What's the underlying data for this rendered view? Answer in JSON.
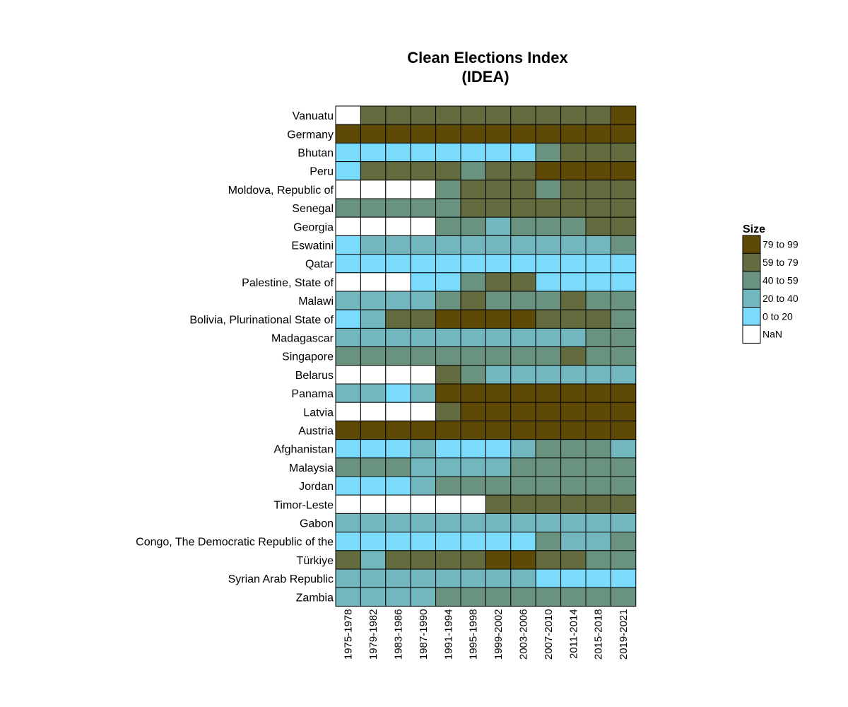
{
  "chart_data": {
    "type": "heatmap",
    "title_lines": [
      "Clean Elections Index",
      "(IDEA)"
    ],
    "columns": [
      "1975-1978",
      "1979-1982",
      "1983-1986",
      "1987-1990",
      "1991-1994",
      "1995-1998",
      "1999-2002",
      "2003-2006",
      "2007-2010",
      "2011-2014",
      "2015-2018",
      "2019-2021"
    ],
    "rows": [
      "Vanuatu",
      "Germany",
      "Bhutan",
      "Peru",
      "Moldova, Republic of",
      "Senegal",
      "Georgia",
      "Eswatini",
      "Qatar",
      "Palestine, State of",
      "Malawi",
      "Bolivia, Plurinational State of",
      "Madagascar",
      "Singapore",
      "Belarus",
      "Panama",
      "Latvia",
      "Austria",
      "Afghanistan",
      "Malaysia",
      "Jordan",
      "Timor-Leste",
      "Gabon",
      "Congo, The Democratic Republic of the",
      "Türkiye",
      "Syrian Arab Republic",
      "Zambia"
    ],
    "bins": [
      {
        "label": "79 to 99",
        "color": "#5e4a05"
      },
      {
        "label": "59 to 79",
        "color": "#636b3f"
      },
      {
        "label": "40 to 59",
        "color": "#6a937f"
      },
      {
        "label": "20 to 40",
        "color": "#72b6be"
      },
      {
        "label": "0 to 20",
        "color": "#7adbfd"
      },
      {
        "label": "NaN",
        "color": "#ffffff"
      }
    ],
    "legend_title": "Size",
    "legend_position": "right",
    "values": [
      [
        null,
        "59 to 79",
        "59 to 79",
        "59 to 79",
        "59 to 79",
        "59 to 79",
        "59 to 79",
        "59 to 79",
        "59 to 79",
        "59 to 79",
        "59 to 79",
        "79 to 99"
      ],
      [
        "79 to 99",
        "79 to 99",
        "79 to 99",
        "79 to 99",
        "79 to 99",
        "79 to 99",
        "79 to 99",
        "79 to 99",
        "79 to 99",
        "79 to 99",
        "79 to 99",
        "79 to 99"
      ],
      [
        "0 to 20",
        "0 to 20",
        "0 to 20",
        "0 to 20",
        "0 to 20",
        "0 to 20",
        "0 to 20",
        "0 to 20",
        "40 to 59",
        "59 to 79",
        "59 to 79",
        "59 to 79"
      ],
      [
        "0 to 20",
        "59 to 79",
        "59 to 79",
        "59 to 79",
        "59 to 79",
        "40 to 59",
        "59 to 79",
        "59 to 79",
        "79 to 99",
        "79 to 99",
        "79 to 99",
        "79 to 99"
      ],
      [
        null,
        null,
        null,
        null,
        "40 to 59",
        "59 to 79",
        "59 to 79",
        "59 to 79",
        "40 to 59",
        "59 to 79",
        "59 to 79",
        "59 to 79"
      ],
      [
        "40 to 59",
        "40 to 59",
        "40 to 59",
        "40 to 59",
        "40 to 59",
        "59 to 79",
        "59 to 79",
        "59 to 79",
        "59 to 79",
        "59 to 79",
        "59 to 79",
        "59 to 79"
      ],
      [
        null,
        null,
        null,
        null,
        "40 to 59",
        "40 to 59",
        "20 to 40",
        "40 to 59",
        "40 to 59",
        "40 to 59",
        "59 to 79",
        "59 to 79"
      ],
      [
        "0 to 20",
        "20 to 40",
        "20 to 40",
        "20 to 40",
        "20 to 40",
        "20 to 40",
        "20 to 40",
        "20 to 40",
        "20 to 40",
        "20 to 40",
        "20 to 40",
        "40 to 59"
      ],
      [
        "0 to 20",
        "0 to 20",
        "0 to 20",
        "0 to 20",
        "0 to 20",
        "0 to 20",
        "0 to 20",
        "0 to 20",
        "0 to 20",
        "0 to 20",
        "0 to 20",
        "0 to 20"
      ],
      [
        null,
        null,
        null,
        "0 to 20",
        "0 to 20",
        "40 to 59",
        "59 to 79",
        "59 to 79",
        "0 to 20",
        "0 to 20",
        "0 to 20",
        "0 to 20"
      ],
      [
        "20 to 40",
        "20 to 40",
        "20 to 40",
        "20 to 40",
        "40 to 59",
        "59 to 79",
        "40 to 59",
        "40 to 59",
        "40 to 59",
        "59 to 79",
        "40 to 59",
        "40 to 59"
      ],
      [
        "0 to 20",
        "20 to 40",
        "59 to 79",
        "59 to 79",
        "79 to 99",
        "79 to 99",
        "79 to 99",
        "79 to 99",
        "59 to 79",
        "59 to 79",
        "59 to 79",
        "40 to 59"
      ],
      [
        "20 to 40",
        "20 to 40",
        "20 to 40",
        "20 to 40",
        "20 to 40",
        "20 to 40",
        "20 to 40",
        "20 to 40",
        "20 to 40",
        "20 to 40",
        "40 to 59",
        "40 to 59"
      ],
      [
        "40 to 59",
        "40 to 59",
        "40 to 59",
        "40 to 59",
        "40 to 59",
        "40 to 59",
        "40 to 59",
        "40 to 59",
        "40 to 59",
        "59 to 79",
        "40 to 59",
        "40 to 59"
      ],
      [
        null,
        null,
        null,
        null,
        "59 to 79",
        "40 to 59",
        "20 to 40",
        "20 to 40",
        "20 to 40",
        "20 to 40",
        "20 to 40",
        "20 to 40"
      ],
      [
        "20 to 40",
        "20 to 40",
        "0 to 20",
        "20 to 40",
        "79 to 99",
        "79 to 99",
        "79 to 99",
        "79 to 99",
        "79 to 99",
        "79 to 99",
        "79 to 99",
        "79 to 99"
      ],
      [
        null,
        null,
        null,
        null,
        "59 to 79",
        "79 to 99",
        "79 to 99",
        "79 to 99",
        "79 to 99",
        "79 to 99",
        "79 to 99",
        "79 to 99"
      ],
      [
        "79 to 99",
        "79 to 99",
        "79 to 99",
        "79 to 99",
        "79 to 99",
        "79 to 99",
        "79 to 99",
        "79 to 99",
        "79 to 99",
        "79 to 99",
        "79 to 99",
        "79 to 99"
      ],
      [
        "0 to 20",
        "0 to 20",
        "0 to 20",
        "20 to 40",
        "0 to 20",
        "0 to 20",
        "0 to 20",
        "20 to 40",
        "40 to 59",
        "40 to 59",
        "40 to 59",
        "20 to 40"
      ],
      [
        "40 to 59",
        "40 to 59",
        "40 to 59",
        "20 to 40",
        "20 to 40",
        "20 to 40",
        "20 to 40",
        "40 to 59",
        "40 to 59",
        "40 to 59",
        "40 to 59",
        "40 to 59"
      ],
      [
        "0 to 20",
        "0 to 20",
        "0 to 20",
        "20 to 40",
        "40 to 59",
        "40 to 59",
        "40 to 59",
        "40 to 59",
        "40 to 59",
        "40 to 59",
        "40 to 59",
        "40 to 59"
      ],
      [
        null,
        null,
        null,
        null,
        null,
        null,
        "59 to 79",
        "59 to 79",
        "59 to 79",
        "59 to 79",
        "59 to 79",
        "59 to 79"
      ],
      [
        "20 to 40",
        "20 to 40",
        "20 to 40",
        "20 to 40",
        "20 to 40",
        "20 to 40",
        "20 to 40",
        "20 to 40",
        "20 to 40",
        "20 to 40",
        "20 to 40",
        "20 to 40"
      ],
      [
        "0 to 20",
        "0 to 20",
        "0 to 20",
        "0 to 20",
        "0 to 20",
        "0 to 20",
        "0 to 20",
        "0 to 20",
        "40 to 59",
        "20 to 40",
        "20 to 40",
        "40 to 59"
      ],
      [
        "59 to 79",
        "20 to 40",
        "59 to 79",
        "59 to 79",
        "59 to 79",
        "59 to 79",
        "79 to 99",
        "79 to 99",
        "59 to 79",
        "59 to 79",
        "40 to 59",
        "40 to 59"
      ],
      [
        "20 to 40",
        "20 to 40",
        "20 to 40",
        "20 to 40",
        "20 to 40",
        "20 to 40",
        "20 to 40",
        "20 to 40",
        "0 to 20",
        "0 to 20",
        "0 to 20",
        "0 to 20"
      ],
      [
        "20 to 40",
        "20 to 40",
        "20 to 40",
        "20 to 40",
        "40 to 59",
        "40 to 59",
        "40 to 59",
        "40 to 59",
        "40 to 59",
        "40 to 59",
        "40 to 59",
        "40 to 59"
      ]
    ]
  }
}
